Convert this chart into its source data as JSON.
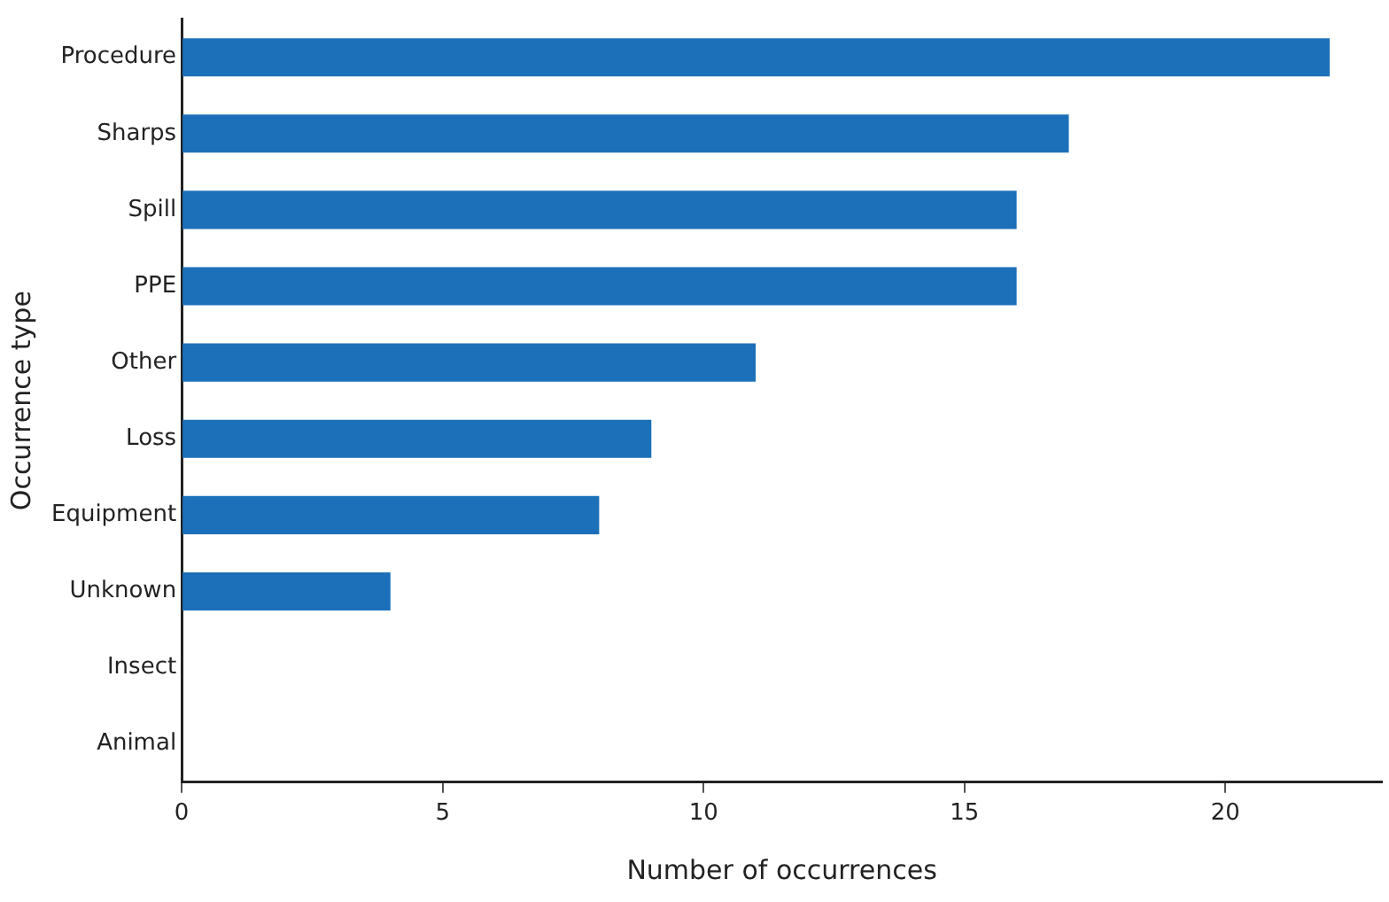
{
  "chart_data": {
    "type": "bar",
    "orientation": "horizontal",
    "xlabel": "Number of occurrences",
    "ylabel": "Occurrence type",
    "categories": [
      "Procedure",
      "Sharps",
      "Spill",
      "PPE",
      "Other",
      "Loss",
      "Equipment",
      "Unknown",
      "Insect",
      "Animal"
    ],
    "values": [
      22,
      17,
      16,
      16,
      11,
      9,
      8,
      4,
      0,
      0
    ],
    "color": "#1b70b9",
    "xlim": [
      0,
      23
    ],
    "xticks": [
      0,
      5,
      10,
      15,
      20
    ],
    "grid": false,
    "legend": false
  }
}
